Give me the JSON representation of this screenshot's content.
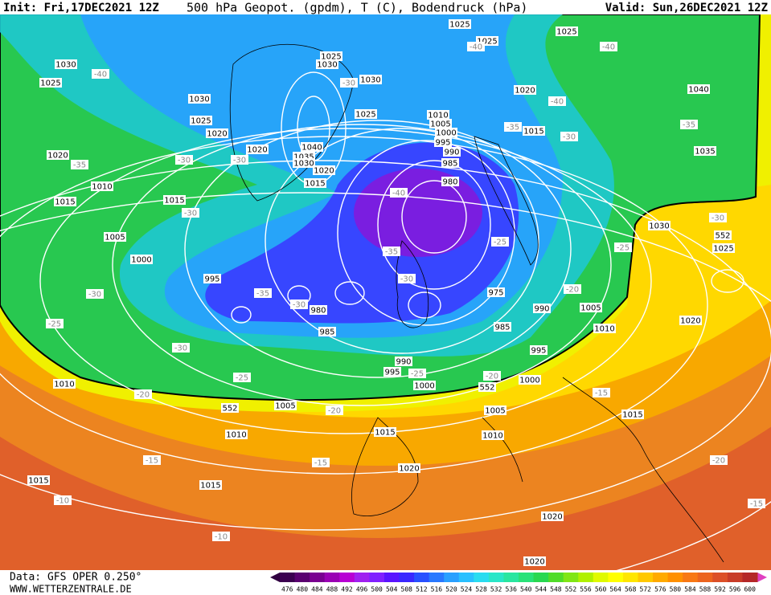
{
  "header": {
    "init": "Init: Fri,17DEC2021 12Z",
    "title": "500 hPa Geopot. (gpdm), T (C), Bodendruck (hPa)",
    "valid": "Valid: Sun,26DEC2021 12Z"
  },
  "map": {
    "labels": [
      "1025",
      "1025",
      "1025",
      "-40",
      "-40",
      "1030",
      "-40",
      "1025",
      "1030",
      "1025",
      "-30",
      "1030",
      "1020",
      "-40",
      "1030",
      "1040",
      "1025",
      "1010",
      "1005",
      "1000",
      "-35",
      "1015",
      "-30",
      "-35",
      "1025",
      "1020",
      "995",
      "1020",
      "1040",
      "990",
      "1035",
      "1030",
      "1035",
      "1020",
      "-35",
      "-30",
      "-30",
      "985",
      "1020",
      "1015",
      "980",
      "1010",
      "-40",
      "1015",
      "1015",
      "-30",
      "1030",
      "-30",
      "1005",
      "-25",
      "552",
      "-35",
      "-25",
      "1025",
      "1000",
      "995",
      "-30",
      "975",
      "-20",
      "-30",
      "-35",
      "-30",
      "980",
      "990",
      "1005",
      "-25",
      "985",
      "1020",
      "985",
      "1010",
      "-30",
      "995",
      "990",
      "995",
      "-25",
      "-20",
      "1000",
      "-25",
      "1010",
      "1000",
      "552",
      "-20",
      "-15",
      "552",
      "1005",
      "-20",
      "1005",
      "1015",
      "1010",
      "1015",
      "1010",
      "-15",
      "-15",
      "1020",
      "-20",
      "1015",
      "1015",
      "-10",
      "-15",
      "1020",
      "-10",
      "1020"
    ]
  },
  "legend": {
    "values": [
      476,
      480,
      484,
      488,
      492,
      496,
      500,
      504,
      508,
      512,
      516,
      520,
      524,
      528,
      532,
      536,
      540,
      544,
      548,
      552,
      556,
      560,
      564,
      568,
      572,
      576,
      580,
      584,
      588,
      592,
      596,
      600
    ],
    "colors": [
      "#3c0050",
      "#5a0070",
      "#7a0090",
      "#9a00b4",
      "#b800d4",
      "#a020f0",
      "#8020ff",
      "#5a14ff",
      "#3a28ff",
      "#2850ff",
      "#2878ff",
      "#28a0ff",
      "#28c0ff",
      "#28dcf0",
      "#28e6c8",
      "#28e6a0",
      "#28e278",
      "#28d850",
      "#50dc28",
      "#80e614",
      "#b0f000",
      "#e0fa00",
      "#ffff00",
      "#ffe600",
      "#ffc800",
      "#ffaa00",
      "#ff9000",
      "#f87814",
      "#ec641e",
      "#dc5028",
      "#c83c28",
      "#b42828"
    ]
  },
  "footer": {
    "data": "Data: GFS OPER 0.250°",
    "site": "WWW.WETTERZENTRALE.DE"
  }
}
